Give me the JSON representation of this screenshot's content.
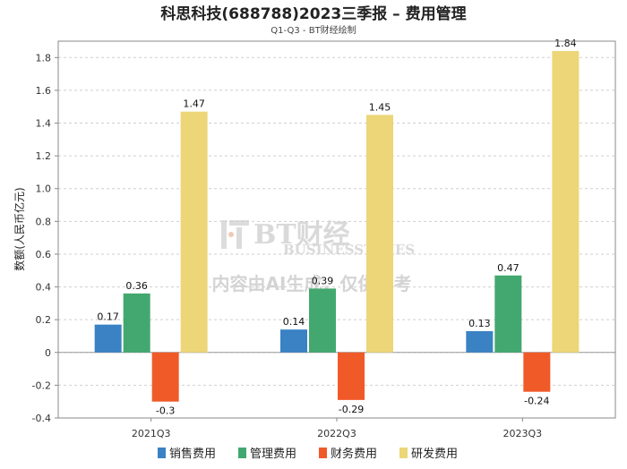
{
  "chart_data": {
    "type": "bar",
    "title": "科思科技(688788)2023三季报 – 费用管理",
    "subtitle": "Q1-Q3 - BT财经绘制",
    "xlabel": "",
    "ylabel": "数额(人民币亿元)",
    "categories": [
      "2021Q3",
      "2022Q3",
      "2023Q3"
    ],
    "series": [
      {
        "name": "销售费用",
        "color": "#3a82c4",
        "values": [
          0.17,
          0.14,
          0.13
        ]
      },
      {
        "name": "管理费用",
        "color": "#43a86f",
        "values": [
          0.36,
          0.39,
          0.47
        ]
      },
      {
        "name": "财务费用",
        "color": "#f05a28",
        "values": [
          -0.3,
          -0.29,
          -0.24
        ]
      },
      {
        "name": "研发费用",
        "color": "#ecd677",
        "values": [
          1.47,
          1.45,
          1.84
        ]
      }
    ],
    "ylim": [
      -0.4,
      1.9
    ],
    "yticks": [
      -0.4,
      -0.2,
      0,
      0.2,
      0.4,
      0.6,
      0.8,
      1.0,
      1.2,
      1.4,
      1.6,
      1.8
    ],
    "ytick_labels": [
      "-0.4",
      "-0.2",
      "0",
      "0.2",
      "0.4",
      "0.6",
      "0.8",
      "1.0",
      "1.2",
      "1.4",
      "1.6",
      "1.8"
    ],
    "grid": true,
    "legend_position": "bottom-center"
  },
  "watermark": {
    "brand": "BT财经",
    "brand_en": "BUSINESSTIMES",
    "notice": "内容由AI生成，仅供参考"
  }
}
